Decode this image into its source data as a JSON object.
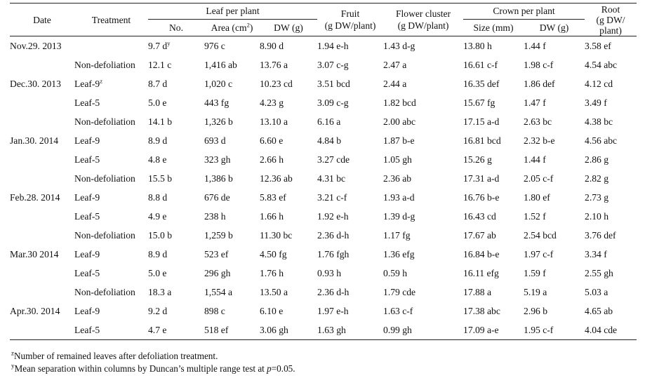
{
  "headers": {
    "date": "Date",
    "treatment": "Treatment",
    "leaf_group": "Leaf per plant",
    "leaf_no": "No.",
    "leaf_area_pre": "Area (cm",
    "leaf_area_sup": "2",
    "leaf_area_post": ")",
    "leaf_dw": "DW (g)",
    "fruit_line1": "Fruit",
    "fruit_line2": "(g DW/plant)",
    "flower_line1": "Flower cluster",
    "flower_line2": "(g DW/plant)",
    "crown_group": "Crown per plant",
    "crown_size": "Size (mm)",
    "crown_dw": "DW (g)",
    "root_line1": "Root",
    "root_line2": "(g DW/",
    "root_line3": "plant)"
  },
  "rows": [
    {
      "date": "Nov.29. 2013",
      "treatment": "",
      "treatment_mark": "",
      "no": "9.7 d",
      "no_mark": "y",
      "area": "976 c",
      "dw": "8.90 d",
      "fruit": "1.94 e-h",
      "flower": "1.43 d-g",
      "crown_size": "13.80 h",
      "crown_dw": "1.44 f",
      "root": "3.58 ef"
    },
    {
      "date": "",
      "treatment": "Non-defoliation",
      "treatment_mark": "",
      "no": "12.1 c",
      "no_mark": "",
      "area": "1,416 ab",
      "dw": "13.76 a",
      "fruit": "3.07 c-g",
      "flower": "2.47 a",
      "crown_size": "16.61 c-f",
      "crown_dw": "1.98 c-f",
      "root": "4.54 abc"
    },
    {
      "date": "Dec.30. 2013",
      "treatment": "Leaf-9",
      "treatment_mark": "z",
      "no": "8.7 d",
      "no_mark": "",
      "area": "1,020 c",
      "dw": "10.23 cd",
      "fruit": "3.51 bcd",
      "flower": "2.44 a",
      "crown_size": "16.35 def",
      "crown_dw": "1.86 def",
      "root": "4.12 cd"
    },
    {
      "date": "",
      "treatment": "Leaf-5",
      "treatment_mark": "",
      "no": "5.0 e",
      "no_mark": "",
      "area": "443 fg",
      "dw": "4.23 g",
      "fruit": "3.09 c-g",
      "flower": "1.82 bcd",
      "crown_size": "15.67 fg",
      "crown_dw": "1.47 f",
      "root": "3.49 f"
    },
    {
      "date": "",
      "treatment": "Non-defoliation",
      "treatment_mark": "",
      "no": "14.1 b",
      "no_mark": "",
      "area": "1,326 b",
      "dw": "13.10 a",
      "fruit": "6.16 a",
      "flower": "2.00 abc",
      "crown_size": "17.15 a-d",
      "crown_dw": "2.63 bc",
      "root": "4.38 bc"
    },
    {
      "date": "Jan.30. 2014",
      "treatment": "Leaf-9",
      "treatment_mark": "",
      "no": "8.9 d",
      "no_mark": "",
      "area": "693 d",
      "dw": "6.60 e",
      "fruit": "4.84 b",
      "flower": "1.87 b-e",
      "crown_size": "16.81 bcd",
      "crown_dw": "2.32 b-e",
      "root": "4.56 abc"
    },
    {
      "date": "",
      "treatment": "Leaf-5",
      "treatment_mark": "",
      "no": "4.8 e",
      "no_mark": "",
      "area": "323 gh",
      "dw": "2.66 h",
      "fruit": "3.27 cde",
      "flower": "1.05 gh",
      "crown_size": "15.26 g",
      "crown_dw": "1.44 f",
      "root": "2.86 g"
    },
    {
      "date": "",
      "treatment": "Non-defoliation",
      "treatment_mark": "",
      "no": "15.5 b",
      "no_mark": "",
      "area": "1,386 b",
      "dw": "12.36 ab",
      "fruit": "4.31 bc",
      "flower": "2.36 ab",
      "crown_size": "17.31 a-d",
      "crown_dw": "2.05 c-f",
      "root": "2.82 g"
    },
    {
      "date": "Feb.28. 2014",
      "treatment": "Leaf-9",
      "treatment_mark": "",
      "no": "8.8 d",
      "no_mark": "",
      "area": "676 de",
      "dw": "5.83 ef",
      "fruit": "3.21 c-f",
      "flower": "1.93 a-d",
      "crown_size": "16.76 b-e",
      "crown_dw": "1.80 ef",
      "root": "2.73 g"
    },
    {
      "date": "",
      "treatment": "Leaf-5",
      "treatment_mark": "",
      "no": "4.9 e",
      "no_mark": "",
      "area": "238 h",
      "dw": "1.66 h",
      "fruit": "1.92 e-h",
      "flower": "1.39 d-g",
      "crown_size": "16.43 cd",
      "crown_dw": "1.52 f",
      "root": "2.10 h"
    },
    {
      "date": "",
      "treatment": "Non-defoliation",
      "treatment_mark": "",
      "no": "15.0 b",
      "no_mark": "",
      "area": "1,259 b",
      "dw": "11.30 bc",
      "fruit": "2.36 d-h",
      "flower": "1.17 fg",
      "crown_size": "17.67 ab",
      "crown_dw": "2.54 bcd",
      "root": "3.76 def"
    },
    {
      "date": "Mar.30 2014",
      "treatment": "Leaf-9",
      "treatment_mark": "",
      "no": "8.9 d",
      "no_mark": "",
      "area": "523 ef",
      "dw": "4.50 fg",
      "fruit": "1.76 fgh",
      "flower": "1.36 efg",
      "crown_size": "16.84 b-e",
      "crown_dw": "1.97 c-f",
      "root": "3.34 f"
    },
    {
      "date": "",
      "treatment": "Leaf-5",
      "treatment_mark": "",
      "no": "5.0 e",
      "no_mark": "",
      "area": "296 gh",
      "dw": "1.76 h",
      "fruit": "0.93 h",
      "flower": "0.59 h",
      "crown_size": "16.11 efg",
      "crown_dw": "1.59 f",
      "root": "2.55 gh"
    },
    {
      "date": "",
      "treatment": "Non-defoliation",
      "treatment_mark": "",
      "no": "18.3 a",
      "no_mark": "",
      "area": "1,554 a",
      "dw": "13.50 a",
      "fruit": "2.36 d-h",
      "flower": "1.79 cde",
      "crown_size": "17.88 a",
      "crown_dw": "5.19 a",
      "root": "5.03 a"
    },
    {
      "date": "Apr.30. 2014",
      "treatment": "Leaf-9",
      "treatment_mark": "",
      "no": "9.2 d",
      "no_mark": "",
      "area": "898 c",
      "dw": "6.10 e",
      "fruit": "1.97 e-h",
      "flower": "1.63 c-f",
      "crown_size": "17.38 abc",
      "crown_dw": "2.96 b",
      "root": "4.65 ab"
    },
    {
      "date": "",
      "treatment": "Leaf-5",
      "treatment_mark": "",
      "no": "4.7 e",
      "no_mark": "",
      "area": "518 ef",
      "dw": "3.06 gh",
      "fruit": "1.63 gh",
      "flower": "0.99 gh",
      "crown_size": "17.09 a-e",
      "crown_dw": "1.95 c-f",
      "root": "4.04 cde"
    }
  ],
  "footnotes": {
    "z_mark": "z",
    "z_text": "Number of remained leaves after defoliation treatment.",
    "y_mark": "y",
    "y_text_pre": "Mean separation within columns by Duncan’s multiple range test at ",
    "y_text_var": "p",
    "y_text_post": "=0.05."
  }
}
